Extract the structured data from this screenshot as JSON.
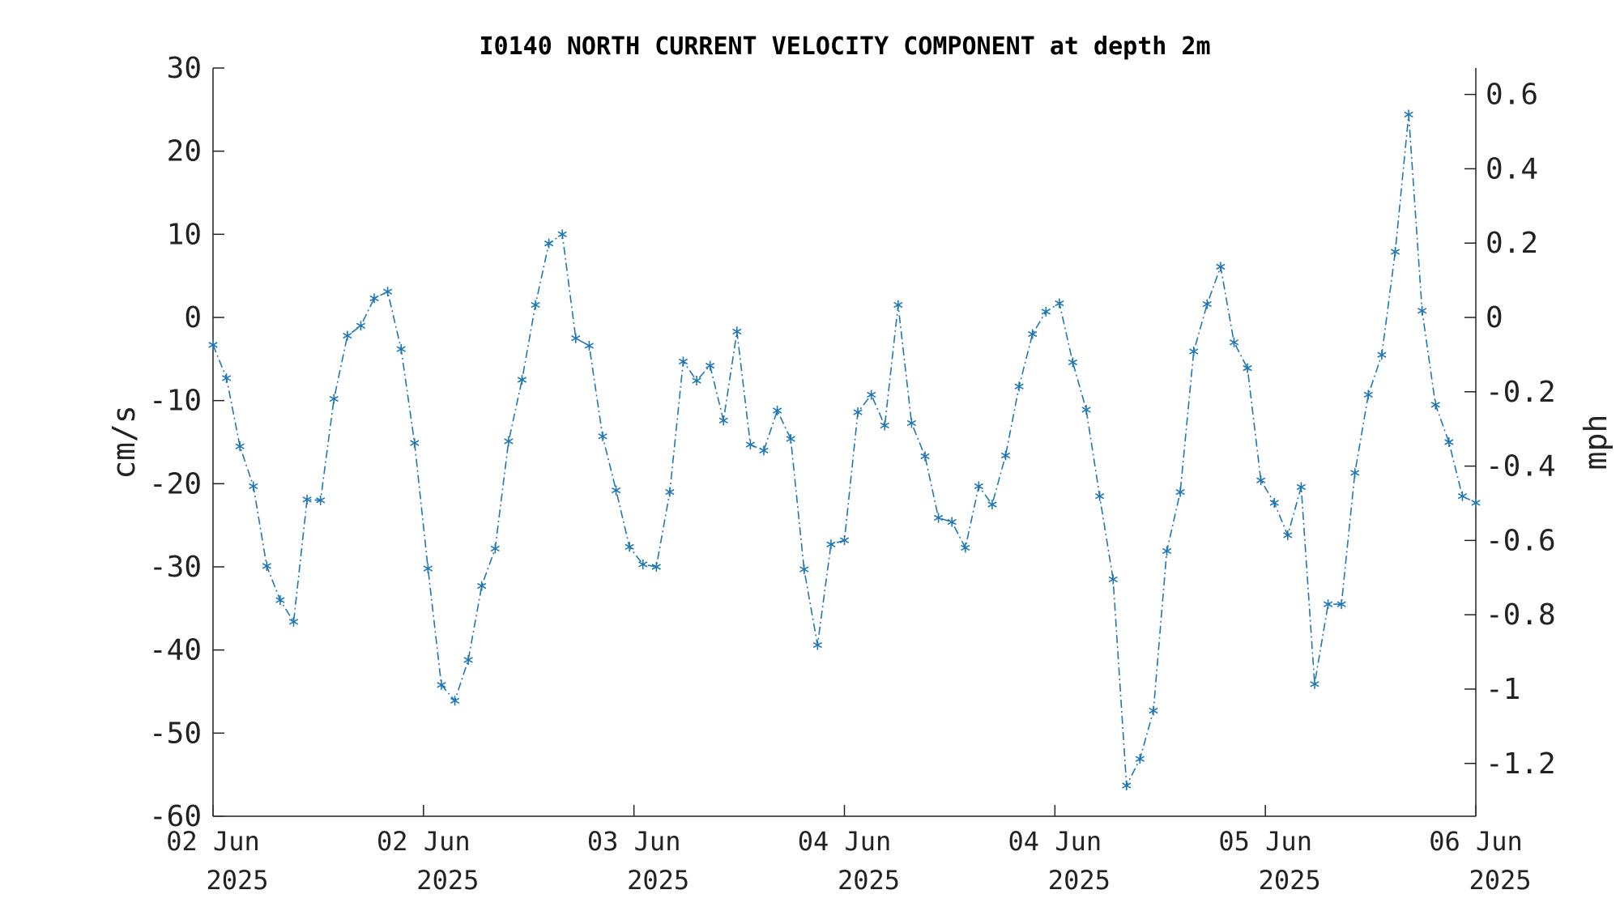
{
  "chart_data": {
    "type": "line",
    "title": "I0140 NORTH CURRENT VELOCITY COMPONENT at depth 2m",
    "ylabel": "cm/s",
    "ylabel_right": "mph",
    "ylim": [
      -60,
      30
    ],
    "y_ticks": [
      "30",
      "20",
      "10",
      "0",
      "-10",
      "-20",
      "-30",
      "-40",
      "-50",
      "-60"
    ],
    "y_right_ticks": [
      "0.6",
      "0.4",
      "0.2",
      "0",
      "-0.2",
      "-0.4",
      "-0.6",
      "-0.8",
      "-1",
      "-1.2"
    ],
    "x_ticks": [
      {
        "day": "02 Jun",
        "year": "2025"
      },
      {
        "day": "02 Jun",
        "year": "2025"
      },
      {
        "day": "03 Jun",
        "year": "2025"
      },
      {
        "day": "04 Jun",
        "year": "2025"
      },
      {
        "day": "04 Jun",
        "year": "2025"
      },
      {
        "day": "05 Jun",
        "year": "2025"
      },
      {
        "day": "06 Jun",
        "year": "2025"
      }
    ],
    "grid": false,
    "series_color": "#1f77b4",
    "marker": "asterisk",
    "line_style": "dash-dot",
    "values": [
      -3.3,
      -7.3,
      -15.5,
      -20.3,
      -29.9,
      -34.0,
      -36.6,
      -21.9,
      -22.0,
      -9.8,
      -2.2,
      -1.0,
      2.3,
      3.1,
      -3.8,
      -15.1,
      -30.2,
      -44.2,
      -46.1,
      -41.2,
      -32.3,
      -27.8,
      -14.9,
      -7.5,
      1.5,
      8.9,
      10.0,
      -2.5,
      -3.4,
      -14.3,
      -20.8,
      -27.6,
      -29.7,
      -30.0,
      -21.0,
      -5.3,
      -7.6,
      -5.8,
      -12.4,
      -1.7,
      -15.3,
      -16.0,
      -11.2,
      -14.6,
      -30.3,
      -39.4,
      -27.3,
      -26.8,
      -11.4,
      -9.3,
      -13.0,
      1.5,
      -12.7,
      -16.7,
      -24.1,
      -24.6,
      -27.7,
      -20.3,
      -22.5,
      -16.6,
      -8.3,
      -2.0,
      0.7,
      1.7,
      -5.4,
      -11.1,
      -21.5,
      -31.5,
      -56.3,
      -53.1,
      -47.3,
      -28.1,
      -21.0,
      -4.1,
      1.6,
      6.1,
      -3.0,
      -6.1,
      -19.6,
      -22.3,
      -26.2,
      -20.4,
      -44.1,
      -34.5,
      -34.5,
      -18.7,
      -9.3,
      -4.5,
      7.9,
      24.4,
      0.8,
      -10.5,
      -15.0,
      -21.5,
      -22.3
    ]
  }
}
